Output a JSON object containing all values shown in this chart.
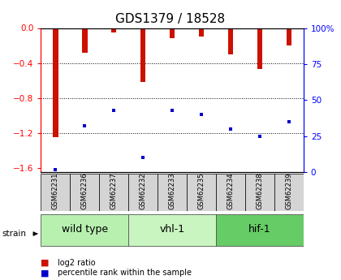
{
  "title": "GDS1379 / 18528",
  "samples": [
    "GSM62231",
    "GSM62236",
    "GSM62237",
    "GSM62232",
    "GSM62233",
    "GSM62235",
    "GSM62234",
    "GSM62238",
    "GSM62239"
  ],
  "log2_values": [
    -1.25,
    -0.28,
    -0.05,
    -0.62,
    -0.12,
    -0.1,
    -0.3,
    -0.47,
    -0.2
  ],
  "percentile_ranks": [
    2,
    32,
    43,
    10,
    43,
    40,
    30,
    25,
    35
  ],
  "groups": [
    {
      "label": "wild type",
      "color": "#b8f0b0",
      "start": 0,
      "end": 3
    },
    {
      "label": "vhl-1",
      "color": "#c8f5c0",
      "start": 3,
      "end": 6
    },
    {
      "label": "hif-1",
      "color": "#66cc66",
      "start": 6,
      "end": 9
    }
  ],
  "ylim_left": [
    -1.65,
    0.0
  ],
  "ylim_right": [
    0,
    100
  ],
  "yticks_left": [
    0,
    -0.4,
    -0.8,
    -1.2,
    -1.6
  ],
  "yticks_right": [
    100,
    75,
    50,
    25,
    0
  ],
  "bar_color": "#cc1100",
  "marker_color": "#0000cc",
  "bar_width": 0.18,
  "bg_color": "#ffffff",
  "title_fontsize": 11,
  "tick_fontsize": 7.5,
  "sample_fontsize": 6,
  "group_fontsize": 9
}
